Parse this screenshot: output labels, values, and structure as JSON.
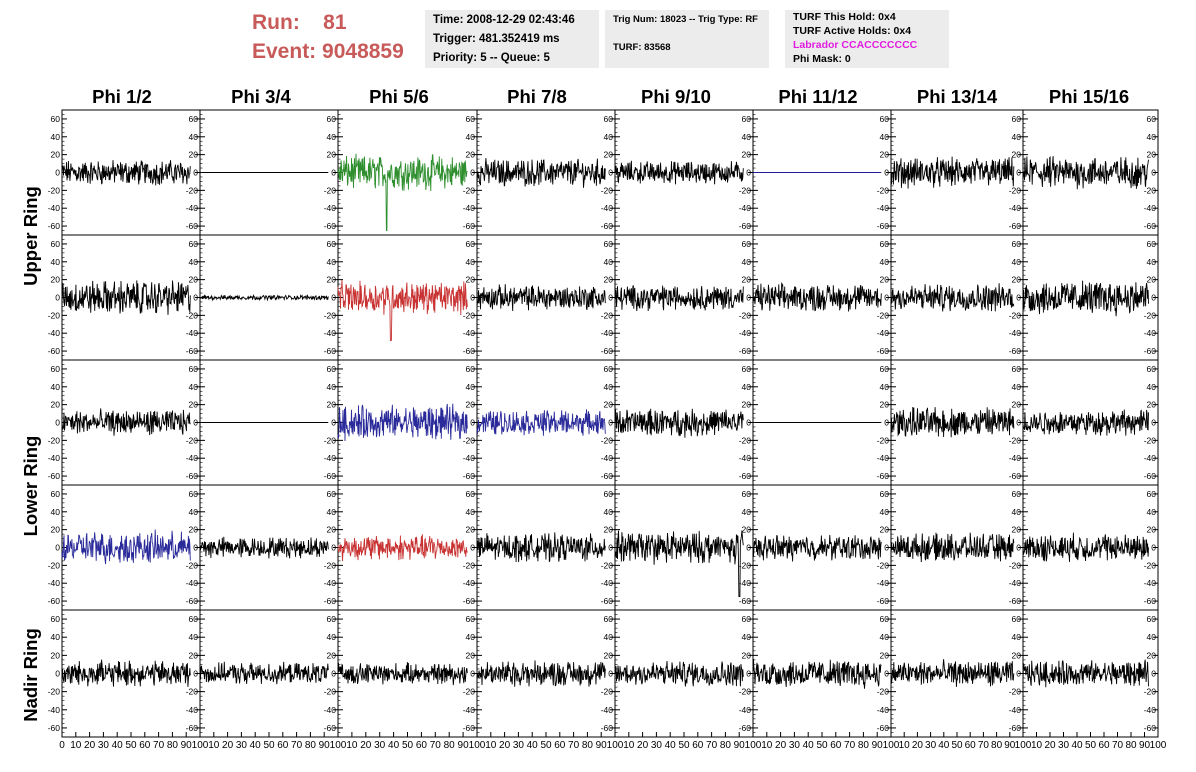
{
  "header": {
    "run_label": "Run:",
    "run_value": "81",
    "event_label": "Event:",
    "event_value": "9048859",
    "time": "Time: 2008-12-29 02:43:46",
    "trigger": "Trigger: 481.352419 ms",
    "priority": "Priority: 5 -- Queue: 5",
    "trig_num": "Trig Num: 18023 -- Trig Type: RF",
    "turf": "TURF: 83568",
    "turf_this_hold": "TURF This Hold: 0x4",
    "turf_active_holds": "TURF Active Holds: 0x4",
    "labrador": "Labrador CCACCCCCCC",
    "phi_mask": "Phi Mask: 0"
  },
  "colors": {
    "header_run": "#c85a5a",
    "labrador": "#e11de1",
    "info_bg": "#ececec",
    "trace_black": "#000000",
    "trace_green": "#2f8f2f",
    "trace_red": "#c83232",
    "trace_blue": "#2a2a9a",
    "trace_navy": "#1f1f99"
  },
  "chart_data": {
    "type": "line",
    "columns": [
      "Phi 1/2",
      "Phi 3/4",
      "Phi 5/6",
      "Phi 7/8",
      "Phi 9/10",
      "Phi 11/12",
      "Phi 13/14",
      "Phi 15/16"
    ],
    "ring_labels": [
      "Upper Ring",
      "Lower Ring",
      "Nadir Ring"
    ],
    "ylim": [
      -70,
      70
    ],
    "yticks": [
      60,
      40,
      20,
      0,
      -20,
      -40,
      -60
    ],
    "xlim": [
      0,
      100
    ],
    "xtick_labels": [
      [
        "0",
        "10",
        "20",
        "30",
        "40",
        "50",
        "60",
        "70",
        "80",
        "90",
        "100"
      ],
      [
        "10",
        "20",
        "30",
        "40",
        "50",
        "60",
        "70",
        "80",
        "90",
        "100"
      ],
      [
        "10",
        "20",
        "30",
        "40",
        "50",
        "60",
        "70",
        "80",
        "90",
        "100"
      ],
      [
        "10",
        "20",
        "30",
        "40",
        "50",
        "60",
        "70",
        "80",
        "90",
        "100"
      ],
      [
        "10",
        "20",
        "30",
        "40",
        "50",
        "60",
        "70",
        "80",
        "90",
        "100"
      ],
      [
        "10",
        "20",
        "30",
        "40",
        "50",
        "60",
        "70",
        "80",
        "90",
        "100"
      ],
      [
        "10",
        "20",
        "30",
        "40",
        "50",
        "60",
        "70",
        "80",
        "90",
        "100"
      ],
      [
        "10",
        "20",
        "30",
        "40",
        "50",
        "60",
        "70",
        "80",
        "90",
        "100"
      ]
    ],
    "x_range": [
      0,
      93
    ],
    "samples": 260,
    "waveforms": [
      [
        {
          "color": "black",
          "amp": 11
        },
        {
          "color": "black",
          "amp": 0
        },
        {
          "color": "green",
          "amp": 15,
          "spike": -65,
          "spike_at": 35
        },
        {
          "color": "black",
          "amp": 12
        },
        {
          "color": "black",
          "amp": 10
        },
        {
          "color": "navy",
          "amp": 0
        },
        {
          "color": "black",
          "amp": 13
        },
        {
          "color": "black",
          "amp": 14
        }
      ],
      [
        {
          "color": "black",
          "amp": 15
        },
        {
          "color": "black",
          "amp": 2
        },
        {
          "color": "red",
          "amp": 14,
          "spike": -48,
          "spike_at": 38
        },
        {
          "color": "black",
          "amp": 11
        },
        {
          "color": "black",
          "amp": 11
        },
        {
          "color": "black",
          "amp": 12
        },
        {
          "color": "black",
          "amp": 12
        },
        {
          "color": "black",
          "amp": 15
        }
      ],
      [
        {
          "color": "black",
          "amp": 11
        },
        {
          "color": "black",
          "amp": 0
        },
        {
          "color": "blue",
          "amp": 15
        },
        {
          "color": "blue",
          "amp": 11
        },
        {
          "color": "black",
          "amp": 12
        },
        {
          "color": "black",
          "amp": 0
        },
        {
          "color": "black",
          "amp": 13
        },
        {
          "color": "black",
          "amp": 11
        }
      ],
      [
        {
          "color": "blue",
          "amp": 14
        },
        {
          "color": "black",
          "amp": 9
        },
        {
          "color": "red",
          "amp": 11
        },
        {
          "color": "black",
          "amp": 12
        },
        {
          "color": "black",
          "amp": 14,
          "spike": -55,
          "spike_at": 90
        },
        {
          "color": "black",
          "amp": 11
        },
        {
          "color": "black",
          "amp": 12
        },
        {
          "color": "black",
          "amp": 12
        }
      ],
      [
        {
          "color": "black",
          "amp": 11
        },
        {
          "color": "black",
          "amp": 9
        },
        {
          "color": "black",
          "amp": 9
        },
        {
          "color": "black",
          "amp": 11
        },
        {
          "color": "black",
          "amp": 11
        },
        {
          "color": "black",
          "amp": 12
        },
        {
          "color": "black",
          "amp": 11
        },
        {
          "color": "black",
          "amp": 11
        }
      ]
    ]
  }
}
